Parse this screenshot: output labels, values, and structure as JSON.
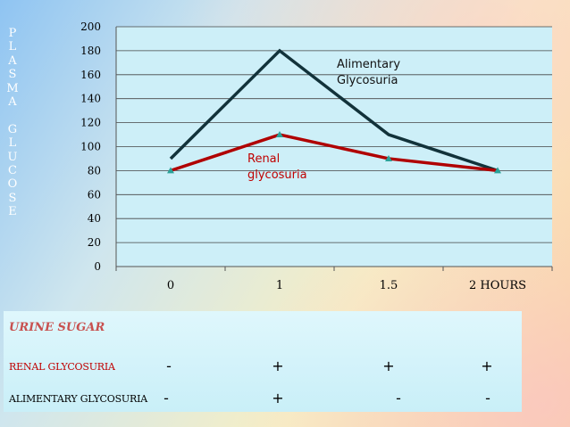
{
  "colors": {
    "plot_background": "#cdeff8",
    "alimentary_line": "#12323a",
    "renal_line": "#b00000",
    "marker": "#2aa198",
    "renal_text": "#c00000",
    "urine_title": "#c8504f"
  },
  "vertical_label": "P\nL\nA\nS\nM\nA\n\nG\nL\nU\nC\nO\nS\nE",
  "chart_data": {
    "type": "line",
    "categories": [
      "0",
      "1",
      "1.5",
      "2 HOURS"
    ],
    "series": [
      {
        "name": "Alimentary Glycosuria",
        "values": [
          90,
          180,
          110,
          80
        ]
      },
      {
        "name": "Renal glycosuria",
        "values": [
          80,
          110,
          90,
          80
        ]
      }
    ],
    "ylim": [
      0,
      200
    ],
    "yticks": [
      "0",
      "20",
      "40",
      "60",
      "80",
      "100",
      "120",
      "140",
      "160",
      "180",
      "200"
    ],
    "grid": true,
    "annotations": {
      "alimentary": [
        "Alimentary",
        "Glycosuria"
      ],
      "renal": [
        "Renal",
        "glycosuria"
      ]
    }
  },
  "urine_table": {
    "title": "URINE SUGAR",
    "rows": [
      {
        "label": "RENAL GLYCOSURIA",
        "signs": [
          "-",
          "+",
          "+",
          "+"
        ]
      },
      {
        "label": "ALIMENTARY GLYCOSURIA",
        "signs": [
          "-",
          "+",
          "-",
          "-"
        ]
      }
    ]
  }
}
